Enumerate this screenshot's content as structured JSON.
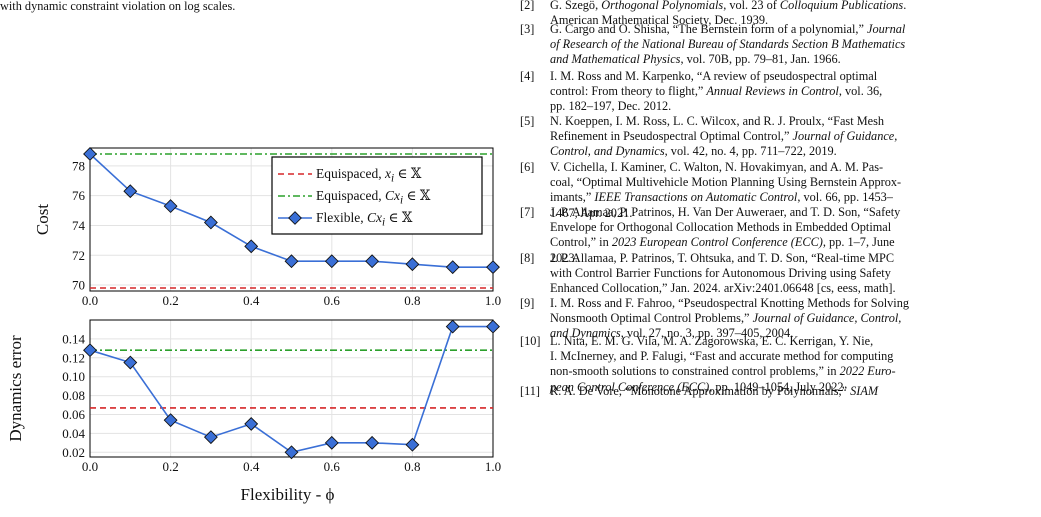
{
  "left_text": {
    "line1": "with dynamic constraint violation on log scales."
  },
  "chart_data": [
    {
      "type": "line",
      "ylabel": "Cost",
      "xlabel": "",
      "x_ticks": [
        "0.0",
        "0.2",
        "0.4",
        "0.6",
        "0.8",
        "1.0"
      ],
      "y_ticks": [
        "70",
        "72",
        "74",
        "76",
        "78"
      ],
      "xlim": [
        0,
        1
      ],
      "ylim": [
        69.6,
        79.2
      ],
      "grid": true,
      "legend": "top-right",
      "series": [
        {
          "name": "Equispaced, x_i ∈ 𝕏",
          "legend_html": "Equispaced, <i>x</i><sub><i>i</i></sub> ∈ 𝕏",
          "color": "#d62728",
          "style": "dashed",
          "x": [
            0,
            1
          ],
          "values": [
            69.8,
            69.8
          ]
        },
        {
          "name": "Equispaced, Cx_i ∈ 𝕏",
          "legend_html": "Equispaced, <i>Cx</i><sub><i>i</i></sub> ∈ 𝕏",
          "color": "#2ca02c",
          "style": "dashdot",
          "x": [
            0,
            1
          ],
          "values": [
            78.8,
            78.8
          ]
        },
        {
          "name": "Flexible, Cx_i ∈ 𝕏",
          "legend_html": "Flexible, <i>Cx</i><sub><i>i</i></sub> ∈ 𝕏",
          "color": "#3a6fd6",
          "style": "solid",
          "marker": "diamond",
          "x": [
            0,
            0.1,
            0.2,
            0.3,
            0.4,
            0.5,
            0.6,
            0.7,
            0.8,
            0.9,
            1.0
          ],
          "values": [
            78.8,
            76.3,
            75.3,
            74.2,
            72.6,
            71.6,
            71.6,
            71.6,
            71.4,
            71.2,
            71.2
          ]
        }
      ]
    },
    {
      "type": "line",
      "ylabel": "Dynamics error",
      "xlabel": "Flexibility - ϕ",
      "x_ticks": [
        "0.0",
        "0.2",
        "0.4",
        "0.6",
        "0.8",
        "1.0"
      ],
      "y_ticks": [
        "0.02",
        "0.04",
        "0.06",
        "0.08",
        "0.10",
        "0.12",
        "0.14"
      ],
      "xlim": [
        0,
        1
      ],
      "ylim": [
        0.015,
        0.16
      ],
      "grid": true,
      "series": [
        {
          "color": "#d62728",
          "style": "dashed",
          "x": [
            0,
            1
          ],
          "values": [
            0.067,
            0.067
          ]
        },
        {
          "color": "#2ca02c",
          "style": "dashdot",
          "x": [
            0,
            1
          ],
          "values": [
            0.128,
            0.128
          ]
        },
        {
          "color": "#3a6fd6",
          "style": "solid",
          "marker": "diamond",
          "x": [
            0,
            0.1,
            0.2,
            0.3,
            0.4,
            0.5,
            0.6,
            0.7,
            0.8,
            0.9,
            1.0
          ],
          "values": [
            0.128,
            0.115,
            0.054,
            0.036,
            0.05,
            0.02,
            0.03,
            0.03,
            0.028,
            0.153,
            0.153
          ]
        }
      ]
    }
  ],
  "references": [
    {
      "num": "[2]",
      "lines": [
        "G. Szegö, <i>Orthogonal Polynomials</i>, vol. 23 of <i>Colloquium Publications</i>.",
        "American Mathematical Society, Dec. 1939."
      ]
    },
    {
      "num": "[3]",
      "lines": [
        "G. Cargo and O. Shisha, “The Bernstein form of a polynomial,” <i>Journal</i>",
        "<i>of Research of the National Bureau of Standards Section B Mathematics</i>",
        "<i>and Mathematical Physics</i>, vol. 70B, pp. 79–81, Jan. 1966."
      ]
    },
    {
      "num": "[4]",
      "lines": [
        "I. M. Ross and M. Karpenko, “A review of pseudospectral optimal",
        "control: From theory to flight,” <i>Annual Reviews in Control</i>, vol. 36,",
        "pp. 182–197, Dec. 2012."
      ]
    },
    {
      "num": "[5]",
      "lines": [
        "N. Koeppen, I. M. Ross, L. C. Wilcox, and R. J. Proulx, “Fast Mesh",
        "Refinement in Pseudospectral Optimal Control,” <i>Journal of Guidance,</i>",
        "<i>Control, and Dynamics</i>, vol. 42, no. 4, pp. 711–722, 2019."
      ]
    },
    {
      "num": "[6]",
      "lines": [
        "V. Cichella, I. Kaminer, C. Walton, N. Hovakimyan, and A. M. Pas-",
        "coal, “Optimal Multivehicle Motion Planning Using Bernstein Approx-",
        "imants,” <i>IEEE Transactions on Automatic Control</i>, vol. 66, pp. 1453–",
        "1467, Apr. 2021."
      ]
    },
    {
      "num": "[7]",
      "lines": [
        "J. P. Allamaa, P. Patrinos, H. Van Der Auweraer, and T. D. Son, “Safety",
        "Envelope for Orthogonal Collocation Methods in Embedded Optimal",
        "Control,” in <i>2023 European Control Conference (ECC)</i>, pp. 1–7, June",
        "2023."
      ]
    },
    {
      "num": "[8]",
      "lines": [
        "J. P. Allamaa, P. Patrinos, T. Ohtsuka, and T. D. Son, “Real-time MPC",
        "with Control Barrier Functions for Autonomous Driving using Safety",
        "Enhanced Collocation,” Jan. 2024. arXiv:2401.06648 [cs, eess, math]."
      ]
    },
    {
      "num": "[9]",
      "lines": [
        "I. M. Ross and F. Fahroo, “Pseudospectral Knotting Methods for Solving",
        "Nonsmooth Optimal Control Problems,” <i>Journal of Guidance, Control,</i>",
        "<i>and Dynamics</i>, vol. 27, no. 3, pp. 397–405, 2004."
      ]
    },
    {
      "num": "[10]",
      "lines": [
        "L. Nita, E. M. G. Vila, M. A. Zagorowska, E. C. Kerrigan, Y. Nie,",
        "I. McInerney, and P. Falugi, “Fast and accurate method for computing",
        "non-smooth solutions to constrained control problems,” in <i>2022 Euro-</i>",
        "<i>pean Control Conference (ECC)</i>, pp. 1049–1054, July 2022."
      ]
    },
    {
      "num": "[11]",
      "lines": [
        "R. A. De Vore, “Monotone Approximation by Polynomials,” <i>SIAM</i>"
      ]
    }
  ]
}
